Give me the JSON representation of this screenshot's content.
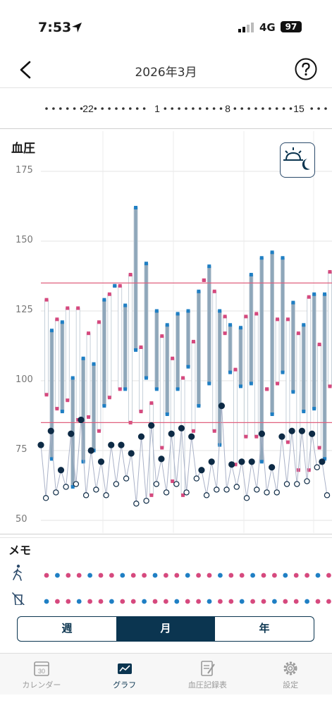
{
  "status_bar": {
    "time": "7:53",
    "network": "4G",
    "battery": "97"
  },
  "header": {
    "title": "2026年3月"
  },
  "date_strip": {
    "labels": [
      "22",
      "1",
      "8",
      "15"
    ]
  },
  "chart": {
    "section_label": "血圧",
    "y_ticks": [
      "175",
      "150",
      "125",
      "100",
      "75",
      "50"
    ]
  },
  "chart_data": {
    "type": "line",
    "y_axis": {
      "range": [
        50,
        175
      ],
      "ticks": [
        50,
        75,
        100,
        125,
        150,
        175
      ]
    },
    "reference_lines": [
      135,
      85
    ],
    "series": [
      {
        "values": [
          129,
          118,
          122,
          121,
          126,
          101,
          126,
          108,
          117,
          106,
          121,
          129,
          131,
          134,
          134,
          127,
          138,
          162,
          112,
          142,
          92,
          125,
          116,
          120,
          108,
          124,
          101,
          125,
          114,
          132,
          136,
          141,
          132,
          125,
          123,
          120,
          104,
          119,
          123,
          138,
          124,
          144,
          97,
          146,
          122,
          144,
          122,
          128,
          117,
          120,
          130,
          131,
          113,
          131,
          139
        ]
      },
      {
        "values": [
          95,
          72,
          90,
          89,
          93,
          62,
          86,
          71,
          87,
          75,
          82,
          91,
          94,
          134,
          97,
          97,
          85,
          111,
          89,
          101,
          59,
          97,
          76,
          88,
          64,
          97,
          59,
          105,
          82,
          91,
          136,
          99,
          82,
          77,
          117,
          103,
          70,
          98,
          80,
          99,
          80,
          71,
          97,
          88,
          99,
          103,
          78,
          96,
          68,
          89,
          68,
          90,
          76,
          72,
          98
        ]
      },
      {
        "values": [
          77,
          58,
          82,
          60,
          68,
          62,
          81,
          63,
          86,
          59,
          75,
          61,
          71,
          59,
          77,
          63,
          77,
          65,
          74,
          56,
          80,
          57,
          84,
          63,
          72,
          60,
          81,
          63,
          83,
          60,
          80,
          65,
          68,
          59,
          71,
          61,
          91,
          61,
          70,
          62,
          71,
          58,
          71,
          61,
          81,
          60,
          69,
          60,
          80,
          63,
          82,
          63,
          82,
          64,
          81,
          69,
          71,
          59
        ]
      }
    ]
  },
  "memo": {
    "label": "メモ",
    "rows": [
      "walk-icon",
      "no-drink-icon"
    ]
  },
  "segment": {
    "week": "週",
    "month": "月",
    "year": "年",
    "selected": "月"
  },
  "tabbar": {
    "calendar": "カレンダー",
    "calendar_day": "30",
    "graph": "グラフ",
    "record": "血圧記録表",
    "settings": "設定",
    "selected": "グラフ"
  },
  "colors": {
    "accent": "#0b3550",
    "pink": "#d6497e",
    "blue": "#1f7fc4",
    "bar": "#8fa7ba",
    "line_ref": "#e0607e"
  }
}
